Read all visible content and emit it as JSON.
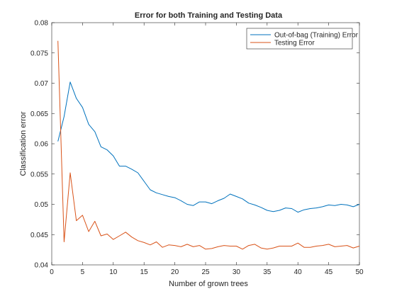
{
  "chart_data": {
    "type": "line",
    "title": "Error for both Training and Testing Data",
    "xlabel": "Number of grown trees",
    "ylabel": "Classification error",
    "xlim": [
      0,
      50
    ],
    "ylim": [
      0.04,
      0.08
    ],
    "xticks": [
      0,
      5,
      10,
      15,
      20,
      25,
      30,
      35,
      40,
      45,
      50
    ],
    "xtick_labels": [
      "0",
      "5",
      "10",
      "15",
      "20",
      "25",
      "30",
      "35",
      "40",
      "45",
      "50"
    ],
    "yticks": [
      0.04,
      0.045,
      0.05,
      0.055,
      0.06,
      0.065,
      0.07,
      0.075,
      0.08
    ],
    "ytick_labels": [
      "0.04",
      "0.045",
      "0.05",
      "0.055",
      "0.06",
      "0.065",
      "0.07",
      "0.075",
      "0.08"
    ],
    "grid": false,
    "legend_position": "top-right",
    "series": [
      {
        "name": "Out-of-bag (Training) Error",
        "color": "#0072BD",
        "x": [
          1,
          2,
          3,
          4,
          5,
          6,
          7,
          8,
          9,
          10,
          11,
          12,
          13,
          14,
          15,
          16,
          17,
          18,
          19,
          20,
          21,
          22,
          23,
          24,
          25,
          26,
          27,
          28,
          29,
          30,
          31,
          32,
          33,
          34,
          35,
          36,
          37,
          38,
          39,
          40,
          41,
          42,
          43,
          44,
          45,
          46,
          47,
          48,
          49,
          50
        ],
        "values": [
          0.0604,
          0.0645,
          0.0702,
          0.0675,
          0.066,
          0.0632,
          0.062,
          0.0595,
          0.059,
          0.058,
          0.0563,
          0.0563,
          0.0558,
          0.0552,
          0.0538,
          0.0524,
          0.0519,
          0.0516,
          0.0513,
          0.0511,
          0.0506,
          0.05,
          0.0498,
          0.0504,
          0.0504,
          0.0501,
          0.0506,
          0.051,
          0.0517,
          0.0513,
          0.0509,
          0.0502,
          0.0499,
          0.0495,
          0.049,
          0.0488,
          0.049,
          0.0494,
          0.0493,
          0.0487,
          0.0491,
          0.0493,
          0.0494,
          0.0496,
          0.0499,
          0.0498,
          0.05,
          0.0499,
          0.0496,
          0.05
        ]
      },
      {
        "name": "Testing Error",
        "color": "#D95319",
        "x": [
          1,
          2,
          3,
          4,
          5,
          6,
          7,
          8,
          9,
          10,
          11,
          12,
          13,
          14,
          15,
          16,
          17,
          18,
          19,
          20,
          21,
          22,
          23,
          24,
          25,
          26,
          27,
          28,
          29,
          30,
          31,
          32,
          33,
          34,
          35,
          36,
          37,
          38,
          39,
          40,
          41,
          42,
          43,
          44,
          45,
          46,
          47,
          48,
          49,
          50
        ],
        "values": [
          0.077,
          0.0438,
          0.0552,
          0.0473,
          0.0482,
          0.0455,
          0.0472,
          0.0448,
          0.0451,
          0.0442,
          0.0448,
          0.0454,
          0.0446,
          0.044,
          0.0437,
          0.0433,
          0.0438,
          0.0429,
          0.0433,
          0.0432,
          0.043,
          0.0434,
          0.043,
          0.0432,
          0.0426,
          0.0427,
          0.043,
          0.0432,
          0.0431,
          0.0431,
          0.0426,
          0.0432,
          0.0434,
          0.0428,
          0.0426,
          0.0428,
          0.0431,
          0.0431,
          0.0431,
          0.0436,
          0.0429,
          0.0429,
          0.0431,
          0.0432,
          0.0434,
          0.043,
          0.0431,
          0.0432,
          0.0428,
          0.0431
        ]
      }
    ]
  }
}
